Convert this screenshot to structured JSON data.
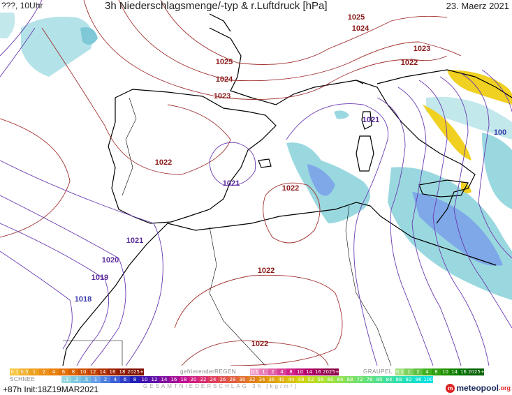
{
  "header": {
    "left": "???, 10Uhr",
    "title": "3h Niederschlagsmenge/-typ & r.Luftdruck [hPa]",
    "date": "23. Maerz 2021"
  },
  "isobar_labels": [
    {
      "text": "1025",
      "color": "#8b1a1a"
    },
    {
      "text": "1024",
      "color": "#8b1a1a"
    },
    {
      "text": "1023",
      "color": "#8b1a1a"
    },
    {
      "text": "1022",
      "color": "#8b1a1a"
    },
    {
      "text": "1025",
      "color": "#8b1a1a"
    },
    {
      "text": "1024",
      "color": "#8b1a1a"
    },
    {
      "text": "1023",
      "color": "#8b1a1a"
    },
    {
      "text": "1022",
      "color": "#8b1a1a"
    },
    {
      "text": "1021",
      "color": "#5a2a9a"
    },
    {
      "text": "1021",
      "color": "#5a2a9a"
    },
    {
      "text": "1022",
      "color": "#8b1a1a"
    },
    {
      "text": "1021",
      "color": "#5a2a9a"
    },
    {
      "text": "1020",
      "color": "#5a2a9a"
    },
    {
      "text": "1019",
      "color": "#5a2a9a"
    },
    {
      "text": "1018",
      "color": "#3a3aaa"
    },
    {
      "text": "1022",
      "color": "#8b1a1a"
    },
    {
      "text": "1022",
      "color": "#8b1a1a"
    },
    {
      "text": "100",
      "color": "#3a3aaa"
    }
  ],
  "legend": {
    "schnee_title": "SCHNEE",
    "schnee_values": [
      "0.1",
      "0.5",
      "1",
      "2",
      "4",
      "6",
      "8",
      "10",
      "12",
      "14",
      "16",
      "18",
      "2025+"
    ],
    "schnee_colors": [
      "#f5c542",
      "#f0b030",
      "#eea020",
      "#ec9018",
      "#e88010",
      "#e47008",
      "#d86000",
      "#cc5000",
      "#c04000",
      "#b03000",
      "#a02000",
      "#901800",
      "#801000"
    ],
    "regen_title": "gefrierenderREGEN",
    "regen_values": [
      "0.1",
      "1",
      "2",
      "4",
      "8",
      "10",
      "14",
      "16",
      "2025+"
    ],
    "regen_colors": [
      "#f0a0c8",
      "#e880b8",
      "#e060a8",
      "#d84098",
      "#d02088",
      "#c01078",
      "#b00068",
      "#a00058",
      "#900048"
    ],
    "graupel_title": "GRAUPEL",
    "graupel_values": [
      "0.1",
      "1",
      "2",
      "4",
      "8",
      "10",
      "14",
      "16",
      "2025+"
    ],
    "graupel_colors": [
      "#a0e080",
      "#80d060",
      "#60c040",
      "#40b020",
      "#30a010",
      "#209000",
      "#108000",
      "#007000",
      "#006000"
    ],
    "total_values": [
      ".1",
      ".2",
      ".5",
      "1",
      "2",
      "4",
      "6",
      "8",
      "10",
      "12",
      "14",
      "16",
      "18",
      "20",
      "22",
      "24",
      "26",
      "28",
      "30",
      "32",
      "34",
      "36",
      "40",
      "44",
      "48",
      "52",
      "56",
      "60",
      "64",
      "68",
      "72",
      "76",
      "80",
      "84",
      "88",
      "92",
      "96",
      "100"
    ],
    "total_colors": [
      "#9ad8e0",
      "#80c8e0",
      "#70b8e0",
      "#6aa0e8",
      "#5080e0",
      "#4060d8",
      "#3040c8",
      "#2020b8",
      "#4010b0",
      "#6010a8",
      "#8010a0",
      "#a01098",
      "#c01090",
      "#d02080",
      "#d83070",
      "#e04060",
      "#e05050",
      "#e06040",
      "#e07030",
      "#e08020",
      "#e09010",
      "#e0a010",
      "#e0b010",
      "#d8c010",
      "#d0d010",
      "#c0d820",
      "#b0e030",
      "#a0e040",
      "#90e050",
      "#80e060",
      "#70e070",
      "#60e080",
      "#50e090",
      "#40e0a0",
      "#30e0b0",
      "#20e0c0",
      "#10e0d0",
      "#00e0e0"
    ],
    "total_title": "GESAMTNIEDERSCHLAG 3h [kg/m²]"
  },
  "footer": {
    "forecast": "+87h  Init:18Z19MAR2021",
    "logo_main": "meteopool",
    "logo_tld": ".org"
  },
  "colors": {
    "land_border": "#000000",
    "high_isobar": "#8b1a1a",
    "low_isobar": "#6a3ab0",
    "precip_light": "#9ad8e0",
    "precip_blue": "#7ea8e8",
    "precip_yellow": "#f0d020"
  }
}
